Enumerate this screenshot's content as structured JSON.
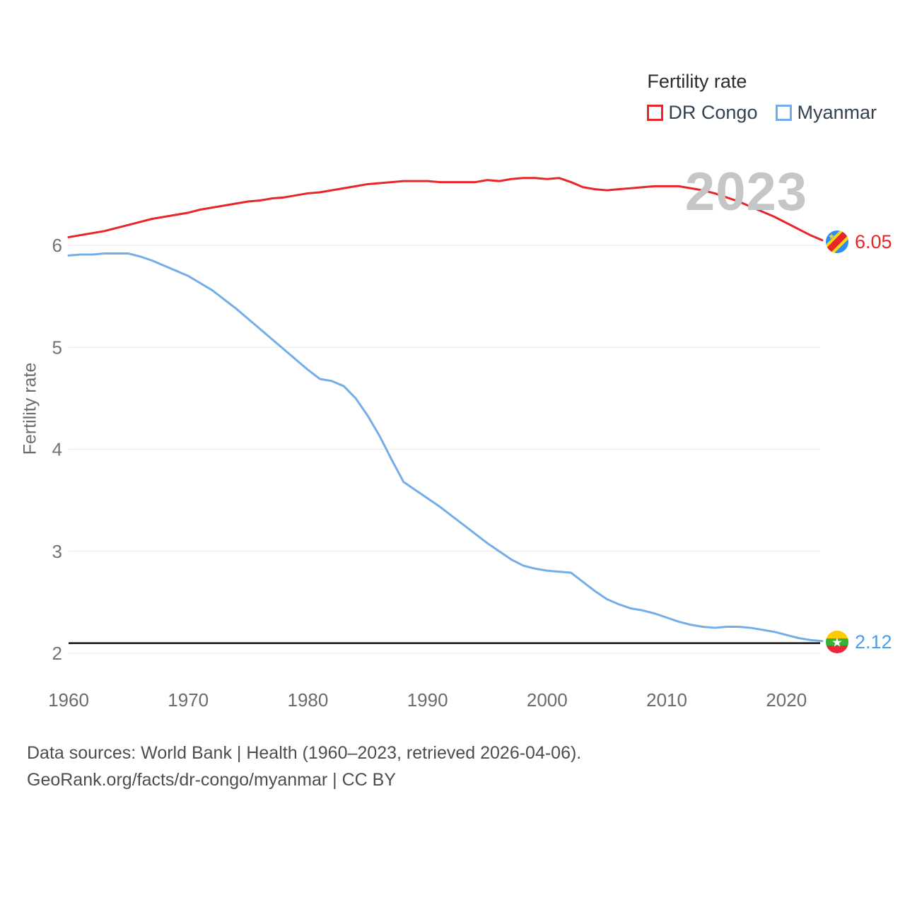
{
  "legend": {
    "title": "Fertility rate",
    "items": [
      {
        "label": "DR Congo",
        "color": "#e8262a"
      },
      {
        "label": "Myanmar",
        "color": "#74aee8"
      }
    ]
  },
  "watermark": "2023",
  "end_labels": [
    {
      "value": "6.05",
      "color": "#e8262a",
      "flag": "dr-congo-flag"
    },
    {
      "value": "2.12",
      "color": "#4f9ce8",
      "flag": "myanmar-flag"
    }
  ],
  "footer": {
    "line1": "Data sources: World Bank | Health (1960–2023, retrieved 2026-04-06).",
    "line2": "GeoRank.org/facts/dr-congo/myanmar | CC BY"
  },
  "chart_data": {
    "type": "line",
    "title": "Fertility rate",
    "ylabel": "Fertility rate",
    "xlabel": "",
    "xlim": [
      1960,
      2023
    ],
    "ylim": [
      1.85,
      6.95
    ],
    "yticks": [
      2,
      3,
      4,
      5,
      6
    ],
    "xticks": [
      1960,
      1970,
      1980,
      1990,
      2000,
      2010,
      2020
    ],
    "grid": true,
    "legend_position": "top-right",
    "reference_line": {
      "value": 2.1,
      "color": "#111111",
      "name": "replacement-level"
    },
    "x": [
      1960,
      1961,
      1962,
      1963,
      1964,
      1965,
      1966,
      1967,
      1968,
      1969,
      1970,
      1971,
      1972,
      1973,
      1974,
      1975,
      1976,
      1977,
      1978,
      1979,
      1980,
      1981,
      1982,
      1983,
      1984,
      1985,
      1986,
      1987,
      1988,
      1989,
      1990,
      1991,
      1992,
      1993,
      1994,
      1995,
      1996,
      1997,
      1998,
      1999,
      2000,
      2001,
      2002,
      2003,
      2004,
      2005,
      2006,
      2007,
      2008,
      2009,
      2010,
      2011,
      2012,
      2013,
      2014,
      2015,
      2016,
      2017,
      2018,
      2019,
      2020,
      2021,
      2022,
      2023
    ],
    "series": [
      {
        "name": "DR Congo",
        "color": "#e8262a",
        "end_value": 6.05,
        "values": [
          6.08,
          6.1,
          6.12,
          6.14,
          6.17,
          6.2,
          6.23,
          6.26,
          6.28,
          6.3,
          6.32,
          6.35,
          6.37,
          6.39,
          6.41,
          6.43,
          6.44,
          6.46,
          6.47,
          6.49,
          6.51,
          6.52,
          6.54,
          6.56,
          6.58,
          6.6,
          6.61,
          6.62,
          6.63,
          6.63,
          6.63,
          6.62,
          6.62,
          6.62,
          6.62,
          6.64,
          6.63,
          6.65,
          6.66,
          6.66,
          6.65,
          6.66,
          6.62,
          6.57,
          6.55,
          6.54,
          6.55,
          6.56,
          6.57,
          6.58,
          6.58,
          6.58,
          6.56,
          6.54,
          6.51,
          6.47,
          6.43,
          6.38,
          6.33,
          6.28,
          6.22,
          6.16,
          6.1,
          6.05
        ]
      },
      {
        "name": "Myanmar",
        "color": "#74aee8",
        "end_value": 2.12,
        "values": [
          5.9,
          5.91,
          5.91,
          5.92,
          5.92,
          5.92,
          5.89,
          5.85,
          5.8,
          5.75,
          5.7,
          5.63,
          5.56,
          5.47,
          5.38,
          5.28,
          5.18,
          5.08,
          4.98,
          4.88,
          4.78,
          4.69,
          4.67,
          4.62,
          4.5,
          4.33,
          4.13,
          3.9,
          3.68,
          3.6,
          3.52,
          3.44,
          3.35,
          3.26,
          3.17,
          3.08,
          3.0,
          2.92,
          2.86,
          2.83,
          2.81,
          2.8,
          2.79,
          2.7,
          2.61,
          2.53,
          2.48,
          2.44,
          2.42,
          2.39,
          2.35,
          2.31,
          2.28,
          2.26,
          2.25,
          2.26,
          2.26,
          2.25,
          2.23,
          2.21,
          2.18,
          2.15,
          2.13,
          2.12
        ]
      }
    ]
  }
}
